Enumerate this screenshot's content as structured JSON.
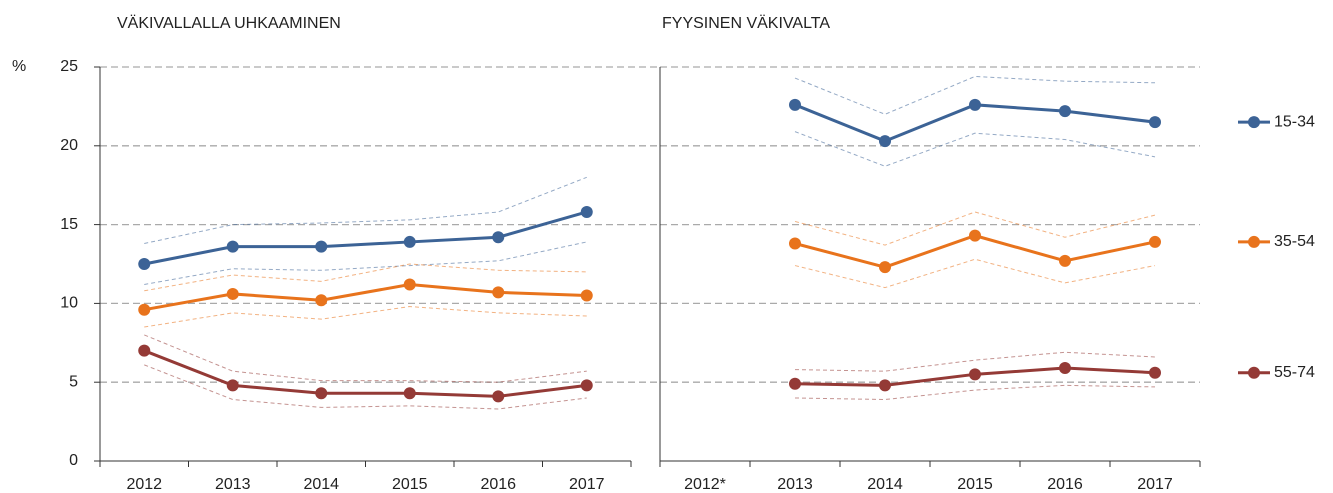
{
  "chart_data": [
    {
      "type": "line",
      "title": "VÄKIVALLALLA UHKAAMINEN",
      "ylabel": "%",
      "categories": [
        "2012",
        "2013",
        "2014",
        "2015",
        "2016",
        "2017"
      ],
      "ylim": [
        0,
        25
      ],
      "yticks": [
        0,
        5,
        10,
        15,
        20,
        25
      ],
      "grid": true,
      "series": [
        {
          "name": "15-34",
          "color": "#3c6396",
          "values": [
            12.5,
            13.6,
            13.6,
            13.9,
            14.2,
            15.8
          ],
          "upper": [
            13.8,
            15.0,
            15.1,
            15.3,
            15.8,
            18.0
          ],
          "lower": [
            11.2,
            12.2,
            12.1,
            12.4,
            12.7,
            13.9
          ]
        },
        {
          "name": "35-54",
          "color": "#e8731c",
          "values": [
            9.6,
            10.6,
            10.2,
            11.2,
            10.7,
            10.5
          ],
          "upper": [
            10.8,
            11.8,
            11.4,
            12.5,
            12.1,
            12.0
          ],
          "lower": [
            8.5,
            9.4,
            9.0,
            9.8,
            9.4,
            9.2
          ]
        },
        {
          "name": "55-74",
          "color": "#943a36",
          "values": [
            7.0,
            4.8,
            4.3,
            4.3,
            4.1,
            4.8
          ],
          "upper": [
            8.0,
            5.7,
            5.1,
            5.1,
            5.0,
            5.7
          ],
          "lower": [
            6.1,
            3.9,
            3.4,
            3.5,
            3.3,
            4.0
          ]
        }
      ]
    },
    {
      "type": "line",
      "title": "FYYSINEN VÄKIVALTA",
      "categories": [
        "2012*",
        "2013",
        "2014",
        "2015",
        "2016",
        "2017"
      ],
      "ylim": [
        0,
        25
      ],
      "yticks": [
        0,
        5,
        10,
        15,
        20,
        25
      ],
      "ytick_labels": false,
      "grid": true,
      "legend": "right",
      "series": [
        {
          "name": "15-34",
          "color": "#3c6396",
          "values": [
            null,
            22.6,
            20.3,
            22.6,
            22.2,
            21.5
          ],
          "upper": [
            null,
            24.3,
            22.0,
            24.4,
            24.1,
            24.0
          ],
          "lower": [
            null,
            20.9,
            18.7,
            20.8,
            20.4,
            19.3
          ]
        },
        {
          "name": "35-54",
          "color": "#e8731c",
          "values": [
            null,
            13.8,
            12.3,
            14.3,
            12.7,
            13.9
          ],
          "upper": [
            null,
            15.2,
            13.7,
            15.8,
            14.2,
            15.6
          ],
          "lower": [
            null,
            12.4,
            11.0,
            12.8,
            11.3,
            12.4
          ]
        },
        {
          "name": "55-74",
          "color": "#943a36",
          "values": [
            null,
            4.9,
            4.8,
            5.5,
            5.9,
            5.6
          ],
          "upper": [
            null,
            5.8,
            5.7,
            6.4,
            6.9,
            6.6
          ],
          "lower": [
            null,
            4.0,
            3.9,
            4.5,
            4.8,
            4.7
          ]
        }
      ]
    }
  ]
}
